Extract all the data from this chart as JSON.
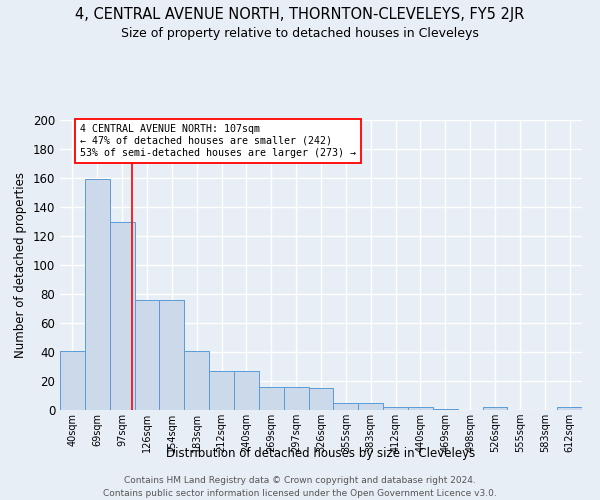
{
  "title": "4, CENTRAL AVENUE NORTH, THORNTON-CLEVELEYS, FY5 2JR",
  "subtitle": "Size of property relative to detached houses in Cleveleys",
  "xlabel": "Distribution of detached houses by size in Cleveleys",
  "ylabel": "Number of detached properties",
  "categories": [
    "40sqm",
    "69sqm",
    "97sqm",
    "126sqm",
    "154sqm",
    "183sqm",
    "212sqm",
    "240sqm",
    "269sqm",
    "297sqm",
    "326sqm",
    "355sqm",
    "383sqm",
    "412sqm",
    "440sqm",
    "469sqm",
    "498sqm",
    "526sqm",
    "555sqm",
    "583sqm",
    "612sqm"
  ],
  "values": [
    41,
    159,
    130,
    76,
    76,
    41,
    27,
    27,
    16,
    16,
    15,
    5,
    5,
    2,
    2,
    1,
    0,
    2,
    0,
    0,
    2
  ],
  "bar_color": "#ccd9ea",
  "bar_edge_color": "#5b9bd5",
  "redline_x": 2.38,
  "annotation_text": "4 CENTRAL AVENUE NORTH: 107sqm\n← 47% of detached houses are smaller (242)\n53% of semi-detached houses are larger (273) →",
  "annotation_box_color": "white",
  "annotation_box_edge": "red",
  "redline_color": "red",
  "ylim": [
    0,
    200
  ],
  "yticks": [
    0,
    20,
    40,
    60,
    80,
    100,
    120,
    140,
    160,
    180,
    200
  ],
  "background_color": "#e8eef5",
  "grid_color": "#ffffff",
  "footer_line1": "Contains HM Land Registry data © Crown copyright and database right 2024.",
  "footer_line2": "Contains public sector information licensed under the Open Government Licence v3.0."
}
